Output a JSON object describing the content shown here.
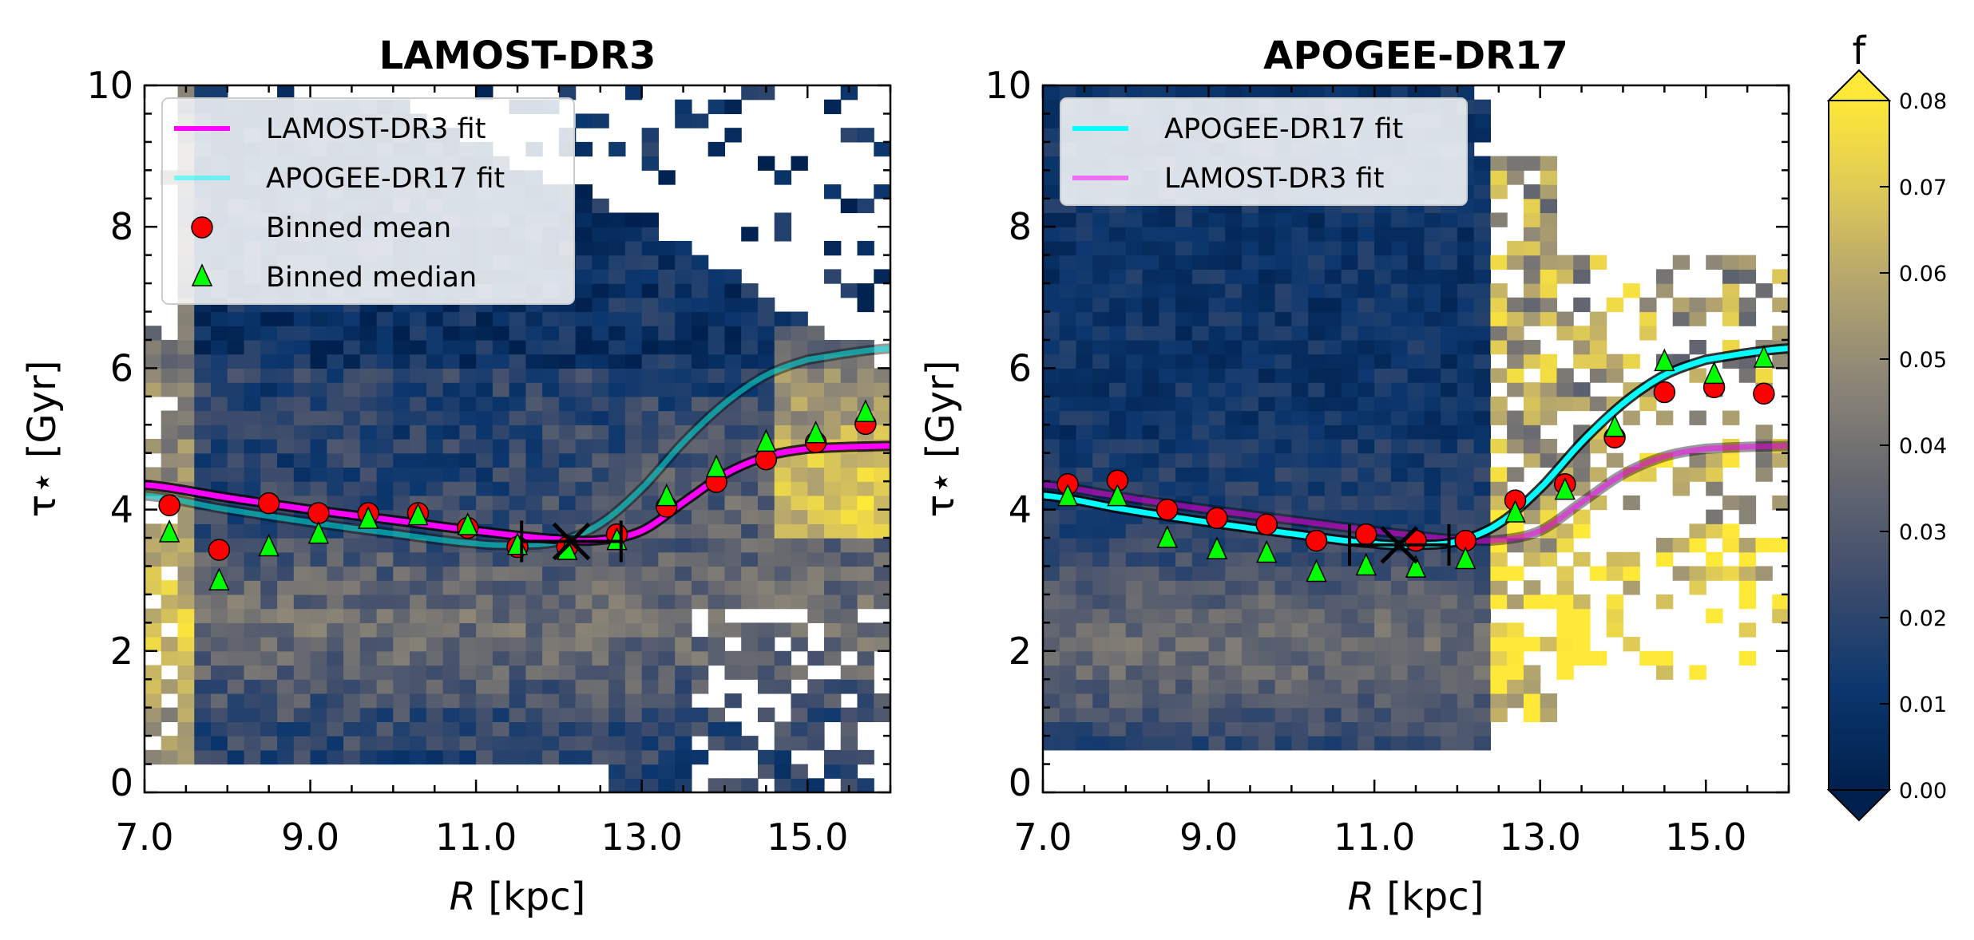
{
  "chart_data": [
    {
      "type": "heatmap",
      "title": "LAMOST-DR3",
      "xlabel": "R [kpc]",
      "ylabel": "τ⋆ [Gyr]",
      "xlim": [
        7.0,
        16.0
      ],
      "ylim": [
        0,
        10
      ],
      "xticks": [
        "7.0",
        "9.0",
        "11.0",
        "13.0",
        "15.0"
      ],
      "yticks": [
        "0",
        "2",
        "4",
        "6",
        "8",
        "10"
      ],
      "legend_position": "top-left",
      "legend": [
        "LAMOST-DR3 fit",
        "APOGEE-DR17 fit",
        "Binned mean",
        "Binned median"
      ],
      "binned_R": [
        7.3,
        7.9,
        8.5,
        9.1,
        9.7,
        10.3,
        10.9,
        11.5,
        12.1,
        12.7,
        13.3,
        13.9,
        14.5,
        15.1,
        15.7
      ],
      "binned_mean": [
        4.06,
        3.43,
        4.09,
        3.95,
        3.95,
        3.95,
        3.74,
        3.47,
        3.47,
        3.65,
        4.04,
        4.39,
        4.71,
        4.95,
        5.21
      ],
      "binned_median": [
        3.67,
        2.99,
        3.47,
        3.65,
        3.86,
        3.91,
        3.77,
        3.49,
        3.42,
        3.56,
        4.18,
        4.59,
        4.95,
        5.07,
        5.37
      ],
      "break_point": {
        "R": 12.15,
        "tau": 3.55,
        "R_err": [
          11.55,
          12.75
        ]
      },
      "primary_fit": "lamost",
      "grid": false
    },
    {
      "type": "heatmap",
      "title": "APOGEE-DR17",
      "xlabel": "R [kpc]",
      "ylabel": "τ⋆ [Gyr]",
      "xlim": [
        7.0,
        16.0
      ],
      "ylim": [
        0,
        10
      ],
      "xticks": [
        "7.0",
        "9.0",
        "11.0",
        "13.0",
        "15.0"
      ],
      "yticks": [
        "0",
        "2",
        "4",
        "6",
        "8",
        "10"
      ],
      "legend_position": "top-left",
      "legend": [
        "APOGEE-DR17 fit",
        "LAMOST-DR3 fit"
      ],
      "binned_R": [
        7.3,
        7.9,
        8.5,
        9.1,
        9.7,
        10.3,
        10.9,
        11.5,
        12.1,
        12.7,
        13.3,
        13.9,
        14.5,
        15.1,
        15.7
      ],
      "binned_mean": [
        4.36,
        4.41,
        4.0,
        3.88,
        3.79,
        3.56,
        3.65,
        3.56,
        3.56,
        4.13,
        4.36,
        5.02,
        5.66,
        5.73,
        5.64
      ],
      "binned_median": [
        4.18,
        4.18,
        3.59,
        3.43,
        3.38,
        3.11,
        3.2,
        3.17,
        3.29,
        3.95,
        4.27,
        5.16,
        6.09,
        5.91,
        6.14
      ],
      "break_point": {
        "R": 11.3,
        "tau": 3.5,
        "R_err": [
          10.7,
          11.9
        ]
      },
      "primary_fit": "apogee",
      "grid": false
    }
  ],
  "fits": {
    "lamost": {
      "R": [
        7,
        8,
        9,
        10,
        11,
        12,
        12.5,
        13,
        13.5,
        14,
        14.5,
        15,
        16
      ],
      "tau": [
        4.35,
        4.17,
        4.0,
        3.85,
        3.7,
        3.58,
        3.57,
        3.7,
        4.1,
        4.5,
        4.75,
        4.86,
        4.9
      ]
    },
    "apogee": {
      "R": [
        7,
        8,
        9,
        10,
        11,
        11.5,
        12,
        12.5,
        13,
        13.5,
        14,
        14.5,
        15,
        16
      ],
      "tau": [
        4.2,
        4.0,
        3.82,
        3.66,
        3.52,
        3.5,
        3.55,
        3.8,
        4.3,
        4.95,
        5.5,
        5.9,
        6.12,
        6.28
      ]
    }
  },
  "colorbar": {
    "label": "f",
    "range": [
      0.0,
      0.08
    ],
    "ticks": [
      "0.00",
      "0.01",
      "0.02",
      "0.03",
      "0.04",
      "0.05",
      "0.06",
      "0.07",
      "0.08"
    ],
    "colormap": "cividis",
    "extend": "both"
  },
  "colors": {
    "lamost_fit": "#ff00ff",
    "apogee_fit": "#00ffff",
    "mean": "#ff0000",
    "median": "#00ff00"
  }
}
